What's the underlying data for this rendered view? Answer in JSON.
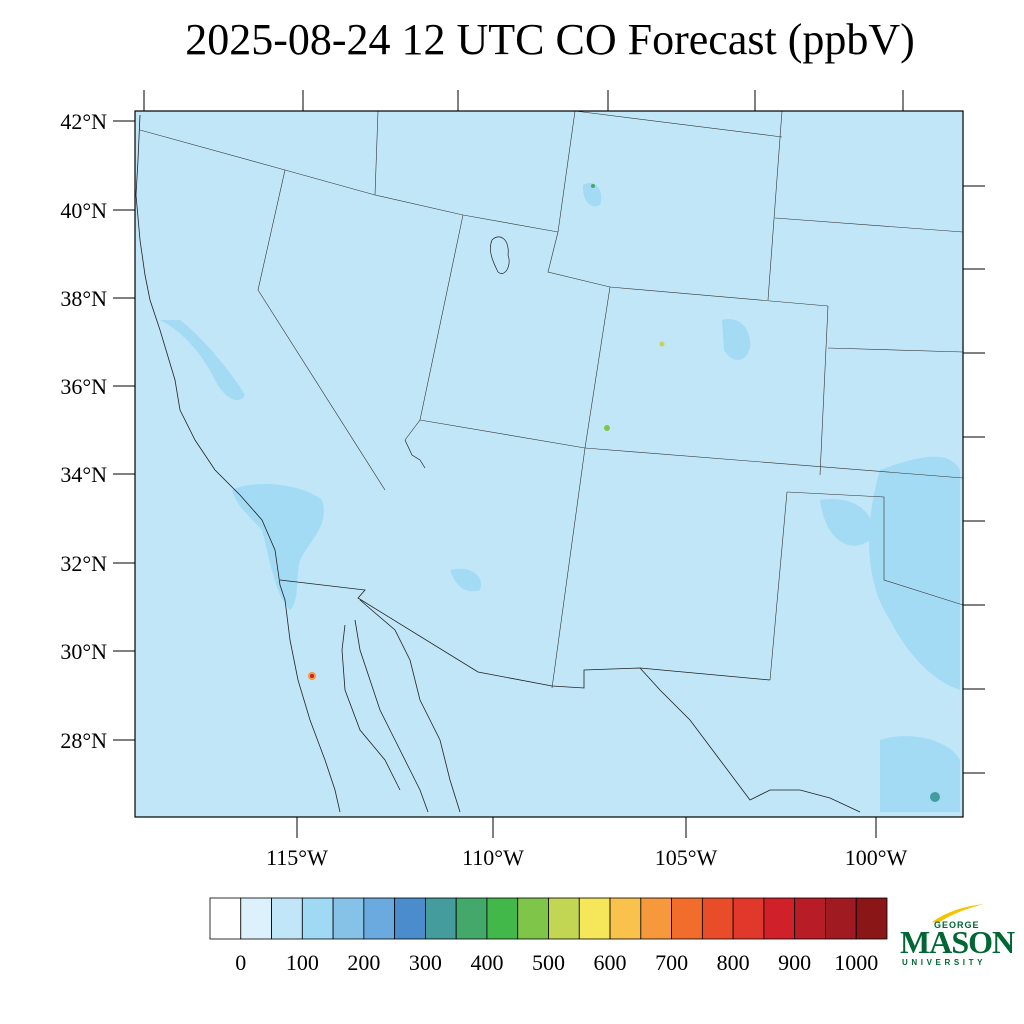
{
  "title": "2025-08-24 12 UTC CO Forecast (ppbV)",
  "map": {
    "background_color": "#c0e6f8",
    "lat_labels": [
      "42°N",
      "40°N",
      "38°N",
      "36°N",
      "34°N",
      "32°N",
      "30°N",
      "28°N"
    ],
    "lon_labels": [
      "115°W",
      "110°W",
      "105°W",
      "100°W"
    ]
  },
  "colorbar": {
    "labels": [
      "0",
      "100",
      "200",
      "300",
      "400",
      "500",
      "600",
      "700",
      "800",
      "900",
      "1000"
    ],
    "colors": [
      "#ffffff",
      "#ddf1fc",
      "#c0e6f8",
      "#a0d9f4",
      "#86c2e8",
      "#6aaade",
      "#4a8ccc",
      "#459c9c",
      "#44a86a",
      "#42b84a",
      "#7fc54a",
      "#c2d654",
      "#f6e65a",
      "#f8c24c",
      "#f6983c",
      "#f26c2c",
      "#e94c28",
      "#e0382a",
      "#d0202a",
      "#b81c26",
      "#a01a22",
      "#8a1618"
    ]
  },
  "logo": {
    "line1": "GEORGE",
    "line2": "MASON",
    "line3": "UNIVERSITY",
    "color": "#006633",
    "accent": "#f2c500"
  }
}
